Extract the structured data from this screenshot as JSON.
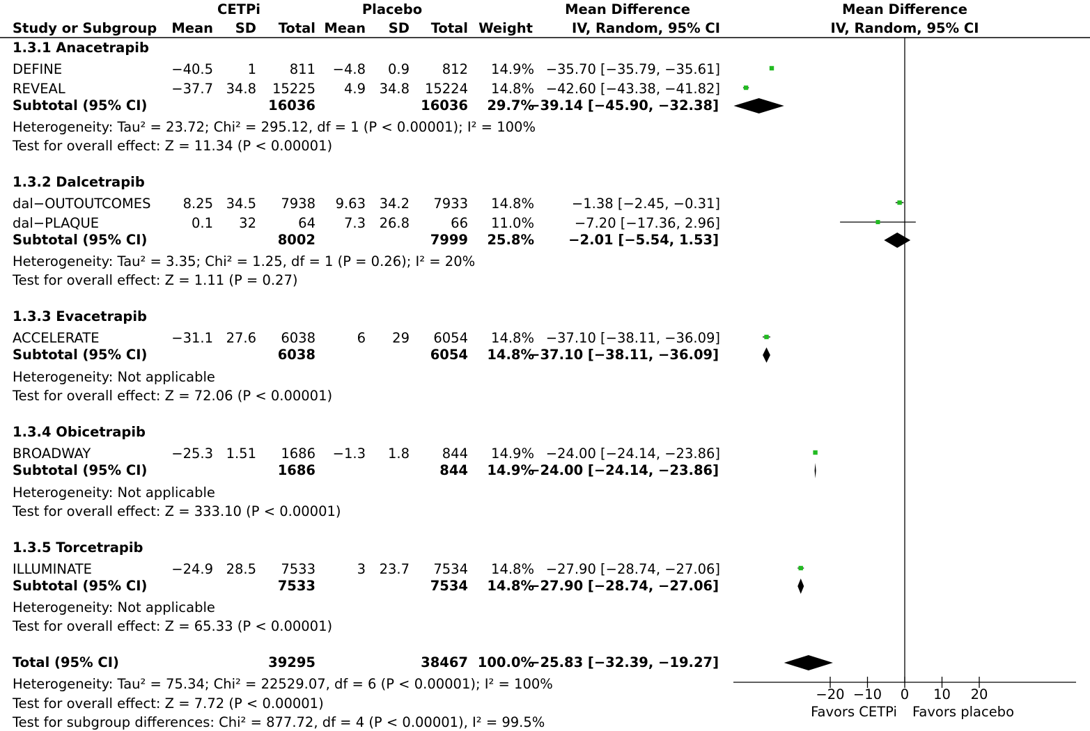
{
  "header": {
    "group1": "CETPi",
    "group2": "Placebo",
    "effect_table": "Mean Difference",
    "effect_plot": "Mean Difference",
    "cols": {
      "study": "Study or Subgroup",
      "mean1": "Mean",
      "sd1": "SD",
      "total1": "Total",
      "mean2": "Mean",
      "sd2": "SD",
      "total2": "Total",
      "weight": "Weight",
      "ci": "IV, Random, 95% CI",
      "ci_plot": "IV, Random, 95% CI"
    }
  },
  "groups": [
    {
      "title": "1.3.1 Anacetrapib",
      "studies": [
        {
          "name": "DEFINE",
          "m1": "−40.5",
          "sd1": "1",
          "n1": "811",
          "m2": "−4.8",
          "sd2": "0.9",
          "n2": "812",
          "w": "14.9%",
          "ci": "−35.70 [−35.79, −35.61]"
        },
        {
          "name": "REVEAL",
          "m1": "−37.7",
          "sd1": "34.8",
          "n1": "15225",
          "m2": "4.9",
          "sd2": "34.8",
          "n2": "15224",
          "w": "14.8%",
          "ci": "−42.60 [−43.38, −41.82]"
        }
      ],
      "subtotal": {
        "label": "Subtotal (95% CI)",
        "n1": "16036",
        "n2": "16036",
        "w": "29.7%",
        "ci": "−39.14 [−45.90, −32.38]"
      },
      "het": "Heterogeneity: Tau² = 23.72; Chi² = 295.12, df = 1 (P < 0.00001); I² = 100%",
      "test": "Test for overall effect: Z = 11.34 (P < 0.00001)"
    },
    {
      "title": "1.3.2 Dalcetrapib",
      "studies": [
        {
          "name": "dal−OUTOUTCOMES",
          "m1": "8.25",
          "sd1": "34.5",
          "n1": "7938",
          "m2": "9.63",
          "sd2": "34.2",
          "n2": "7933",
          "w": "14.8%",
          "ci": "−1.38 [−2.45, −0.31]"
        },
        {
          "name": "dal−PLAQUE",
          "m1": "0.1",
          "sd1": "32",
          "n1": "64",
          "m2": "7.3",
          "sd2": "26.8",
          "n2": "66",
          "w": "11.0%",
          "ci": "−7.20 [−17.36, 2.96]"
        }
      ],
      "subtotal": {
        "label": "Subtotal (95% CI)",
        "n1": "8002",
        "n2": "7999",
        "w": "25.8%",
        "ci": "−2.01 [−5.54, 1.53]"
      },
      "het": "Heterogeneity: Tau² = 3.35; Chi² = 1.25, df = 1 (P = 0.26); I² = 20%",
      "test": "Test for overall effect: Z = 1.11 (P = 0.27)"
    },
    {
      "title": "1.3.3 Evacetrapib",
      "studies": [
        {
          "name": "ACCELERATE",
          "m1": "−31.1",
          "sd1": "27.6",
          "n1": "6038",
          "m2": "6",
          "sd2": "29",
          "n2": "6054",
          "w": "14.8%",
          "ci": "−37.10 [−38.11, −36.09]"
        }
      ],
      "subtotal": {
        "label": "Subtotal (95% CI)",
        "n1": "6038",
        "n2": "6054",
        "w": "14.8%",
        "ci": "−37.10 [−38.11, −36.09]"
      },
      "het": "Heterogeneity: Not applicable",
      "test": "Test for overall effect: Z = 72.06 (P < 0.00001)"
    },
    {
      "title": "1.3.4 Obicetrapib",
      "studies": [
        {
          "name": "BROADWAY",
          "m1": "−25.3",
          "sd1": "1.51",
          "n1": "1686",
          "m2": "−1.3",
          "sd2": "1.8",
          "n2": "844",
          "w": "14.9%",
          "ci": "−24.00 [−24.14, −23.86]"
        }
      ],
      "subtotal": {
        "label": "Subtotal (95% CI)",
        "n1": "1686",
        "n2": "844",
        "w": "14.9%",
        "ci": "−24.00 [−24.14, −23.86]"
      },
      "het": "Heterogeneity: Not applicable",
      "test": "Test for overall effect: Z = 333.10 (P < 0.00001)"
    },
    {
      "title": "1.3.5 Torcetrapib",
      "studies": [
        {
          "name": "ILLUMINATE",
          "m1": "−24.9",
          "sd1": "28.5",
          "n1": "7533",
          "m2": "3",
          "sd2": "23.7",
          "n2": "7534",
          "w": "14.8%",
          "ci": "−27.90 [−28.74, −27.06]"
        }
      ],
      "subtotal": {
        "label": "Subtotal (95% CI)",
        "n1": "7533",
        "n2": "7534",
        "w": "14.8%",
        "ci": "−27.90 [−28.74, −27.06]"
      },
      "het": "Heterogeneity: Not applicable",
      "test": "Test for overall effect: Z = 65.33 (P < 0.00001)"
    }
  ],
  "total": {
    "label": "Total (95% CI)",
    "n1": "39295",
    "n2": "38467",
    "w": "100.0%",
    "ci": "−25.83 [−32.39, −19.27]",
    "het": "Heterogeneity: Tau² = 75.34; Chi² = 22529.07, df = 6 (P < 0.00001); I² = 100%",
    "test": "Test for overall effect: Z = 7.72 (P < 0.00001)",
    "subgroup": "Test for subgroup differences: Chi² = 877.72, df = 4 (P < 0.00001), I² = 99.5%"
  },
  "axis": {
    "ticks": [
      -20,
      -10,
      0,
      10,
      20
    ],
    "tick_labels": [
      "−20",
      "−10",
      "0",
      "10",
      "20"
    ],
    "favors_left": "Favors CETPi",
    "favors_right": "Favors placebo"
  },
  "colors": {
    "study_marker": "#22bb22",
    "diamond": "#000000"
  },
  "chart_data": {
    "type": "scatter",
    "subtype": "forest-plot",
    "title": "Mean Difference",
    "xlabel": "IV, Random, 95% CI",
    "xticks": [
      -20,
      -10,
      0,
      10,
      20
    ],
    "reference_line": 0,
    "studies": [
      {
        "name": "DEFINE",
        "group": "1.3.1 Anacetrapib",
        "md": -35.7,
        "lo": -35.79,
        "hi": -35.61,
        "weight": 14.9
      },
      {
        "name": "REVEAL",
        "group": "1.3.1 Anacetrapib",
        "md": -42.6,
        "lo": -43.38,
        "hi": -41.82,
        "weight": 14.8
      },
      {
        "name": "dal−OUTOUTCOMES",
        "group": "1.3.2 Dalcetrapib",
        "md": -1.38,
        "lo": -2.45,
        "hi": -0.31,
        "weight": 14.8
      },
      {
        "name": "dal−PLAQUE",
        "group": "1.3.2 Dalcetrapib",
        "md": -7.2,
        "lo": -17.36,
        "hi": 2.96,
        "weight": 11.0
      },
      {
        "name": "ACCELERATE",
        "group": "1.3.3 Evacetrapib",
        "md": -37.1,
        "lo": -38.11,
        "hi": -36.09,
        "weight": 14.8
      },
      {
        "name": "BROADWAY",
        "group": "1.3.4 Obicetrapib",
        "md": -24.0,
        "lo": -24.14,
        "hi": -23.86,
        "weight": 14.9
      },
      {
        "name": "ILLUMINATE",
        "group": "1.3.5 Torcetrapib",
        "md": -27.9,
        "lo": -28.74,
        "hi": -27.06,
        "weight": 14.8
      }
    ],
    "subtotals": [
      {
        "group": "1.3.1 Anacetrapib",
        "md": -39.14,
        "lo": -45.9,
        "hi": -32.38,
        "weight": 29.7
      },
      {
        "group": "1.3.2 Dalcetrapib",
        "md": -2.01,
        "lo": -5.54,
        "hi": 1.53,
        "weight": 25.8
      },
      {
        "group": "1.3.3 Evacetrapib",
        "md": -37.1,
        "lo": -38.11,
        "hi": -36.09,
        "weight": 14.8
      },
      {
        "group": "1.3.4 Obicetrapib",
        "md": -24.0,
        "lo": -24.14,
        "hi": -23.86,
        "weight": 14.9
      },
      {
        "group": "1.3.5 Torcetrapib",
        "md": -27.9,
        "lo": -28.74,
        "hi": -27.06,
        "weight": 14.8
      }
    ],
    "overall": {
      "md": -25.83,
      "lo": -32.39,
      "hi": -19.27,
      "weight": 100.0
    }
  }
}
